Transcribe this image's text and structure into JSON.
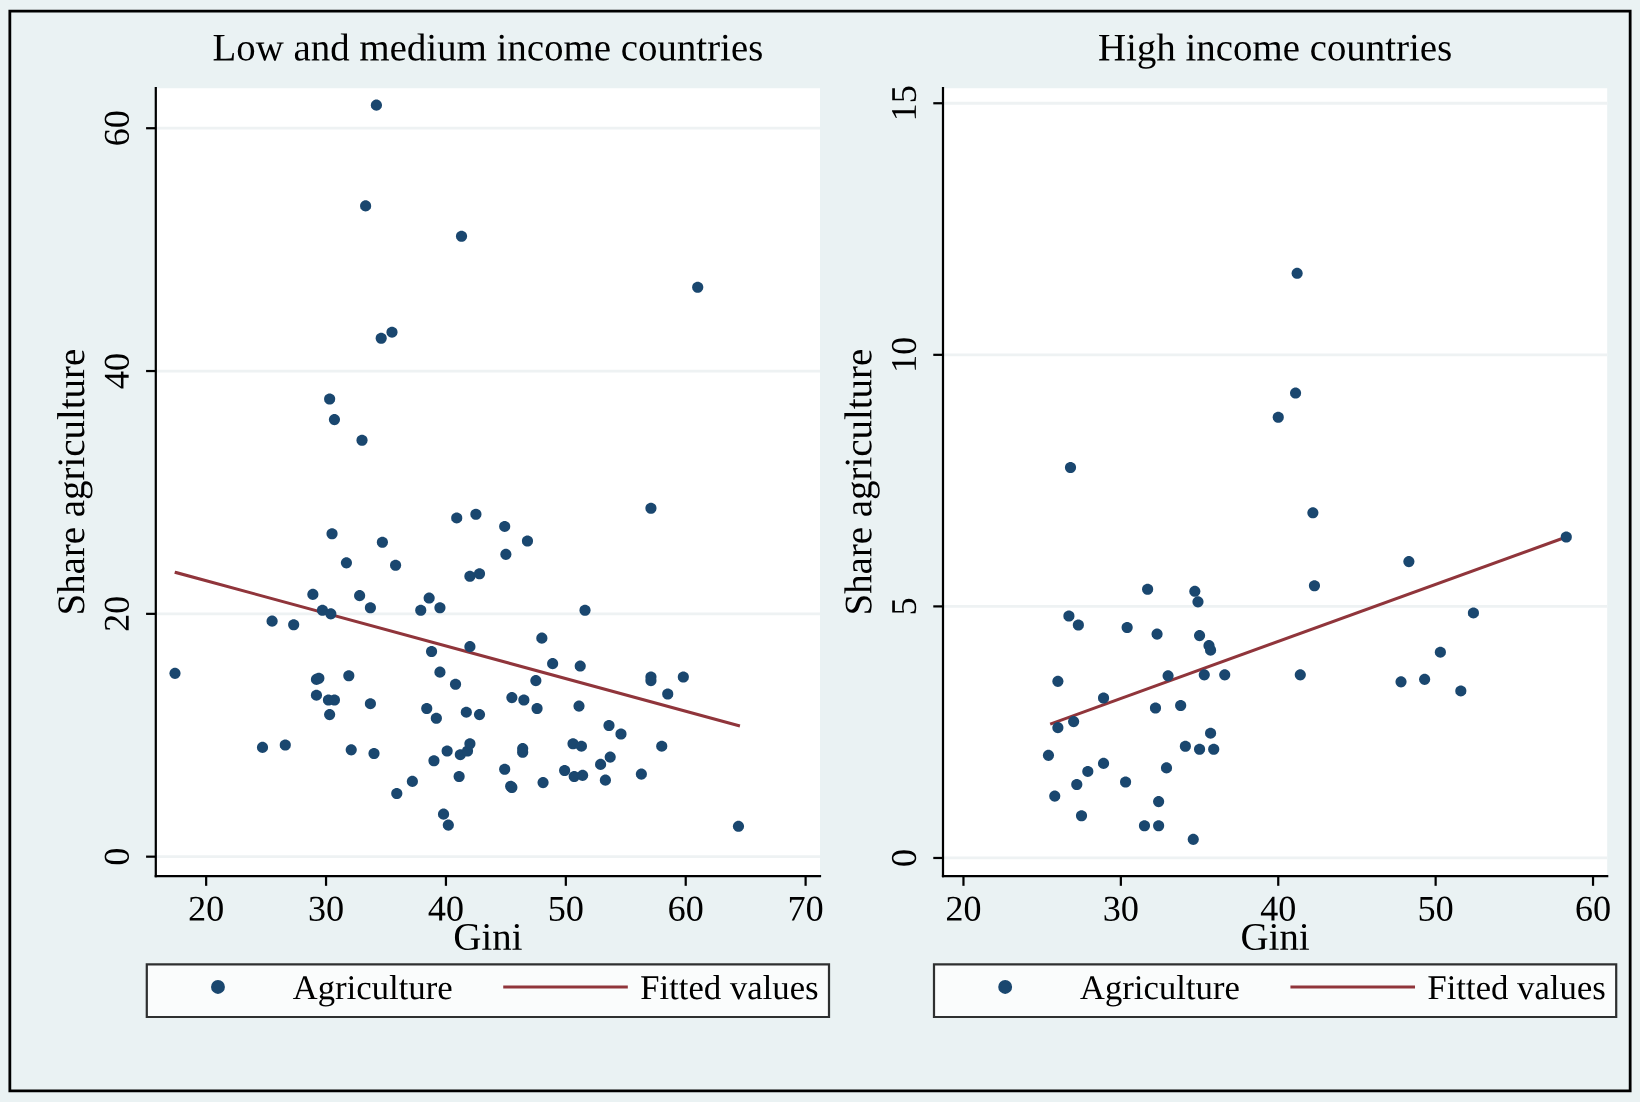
{
  "chart_data": [
    {
      "type": "scatter",
      "title": "Low and medium income countries",
      "xlabel": "Gini",
      "ylabel": "Share agriculture",
      "xlim": [
        15.8,
        71.2
      ],
      "ylim": [
        -1.6,
        63.3
      ],
      "xticks": [
        20,
        30,
        40,
        50,
        60,
        70
      ],
      "yticks": [
        0,
        20,
        40,
        60
      ],
      "grid": "y",
      "legend": "bottom",
      "series": [
        {
          "name": "Agriculture",
          "marker": "circle",
          "color": "#1a476f",
          "x": [
            17.4,
            24.7,
            25.5,
            26.6,
            27.3,
            28.9,
            29.2,
            29.4,
            29.2,
            29.7,
            30.4,
            30.2,
            30.7,
            30.3,
            30.3,
            30.7,
            30.5,
            31.7,
            31.9,
            32.1,
            32.8,
            33.0,
            33.3,
            33.7,
            33.7,
            34.0,
            34.2,
            34.6,
            35.5,
            34.7,
            35.8,
            35.9,
            37.2,
            37.9,
            38.4,
            38.6,
            38.8,
            39.2,
            39.5,
            39.5,
            39.0,
            39.8,
            40.2,
            40.1,
            40.8,
            40.9,
            41.3,
            41.1,
            41.2,
            41.7,
            41.8,
            42.0,
            42.0,
            42.0,
            42.5,
            42.8,
            42.8,
            44.9,
            45.0,
            44.9,
            45.4,
            45.5,
            45.5,
            46.4,
            46.4,
            46.5,
            46.8,
            47.5,
            47.6,
            48.0,
            48.1,
            48.9,
            49.9,
            50.6,
            50.7,
            51.3,
            51.4,
            51.1,
            51.2,
            51.6,
            52.9,
            53.3,
            53.6,
            53.7,
            54.6,
            56.3,
            57.1,
            57.1,
            57.1,
            58.0,
            58.5,
            59.8,
            61.0,
            64.4
          ],
          "values": [
            15.1,
            9.0,
            19.4,
            9.2,
            19.1,
            21.6,
            14.6,
            14.7,
            13.3,
            20.3,
            20.0,
            12.9,
            12.9,
            11.7,
            37.7,
            36.0,
            26.6,
            24.2,
            14.9,
            8.8,
            21.5,
            34.3,
            53.6,
            20.5,
            12.6,
            8.5,
            61.9,
            42.7,
            43.2,
            25.9,
            24.0,
            5.2,
            6.2,
            20.3,
            12.2,
            21.3,
            16.9,
            11.4,
            15.2,
            20.5,
            7.9,
            3.5,
            2.6,
            8.7,
            14.2,
            27.9,
            51.1,
            6.6,
            8.4,
            11.9,
            8.7,
            9.3,
            17.3,
            23.1,
            28.2,
            23.3,
            11.7,
            27.2,
            24.9,
            7.2,
            5.8,
            5.7,
            13.1,
            8.9,
            8.6,
            12.9,
            26.0,
            14.5,
            12.2,
            18.0,
            6.1,
            15.9,
            7.1,
            9.3,
            6.6,
            9.1,
            6.7,
            12.4,
            15.7,
            20.3,
            7.6,
            6.3,
            10.8,
            8.2,
            10.1,
            6.8,
            28.7,
            14.8,
            14.5,
            9.1,
            13.4,
            14.8,
            46.9,
            2.5
          ]
        },
        {
          "name": "Fitted values",
          "type": "line",
          "color": "#90353b",
          "x": [
            17.5,
            64.4
          ],
          "values": [
            23.4,
            10.8
          ]
        }
      ]
    },
    {
      "type": "scatter",
      "title": "High income countries",
      "xlabel": "Gini",
      "ylabel": "Share agriculture",
      "xlim": [
        18.7,
        60.9
      ],
      "ylim": [
        -0.36,
        15.3
      ],
      "xticks": [
        20,
        30,
        40,
        50,
        60
      ],
      "yticks": [
        0,
        5,
        10,
        15
      ],
      "grid": "y",
      "legend": "bottom",
      "series": [
        {
          "name": "Agriculture",
          "marker": "circle",
          "color": "#1a476f",
          "x": [
            25.4,
            25.8,
            26.0,
            26.0,
            26.7,
            26.8,
            27.0,
            27.2,
            27.3,
            27.5,
            27.9,
            28.9,
            28.9,
            30.3,
            30.4,
            31.5,
            31.7,
            32.2,
            32.3,
            32.4,
            32.4,
            32.9,
            33.0,
            33.8,
            34.1,
            34.6,
            34.7,
            34.9,
            35.0,
            35.0,
            35.3,
            35.6,
            35.7,
            35.7,
            35.9,
            36.6,
            40.0,
            41.1,
            41.2,
            41.4,
            42.2,
            42.3,
            47.8,
            48.3,
            49.3,
            50.3,
            51.6,
            52.4,
            58.3
          ],
          "values": [
            2.04,
            1.23,
            3.51,
            2.59,
            4.81,
            7.76,
            2.71,
            1.46,
            4.63,
            0.84,
            1.72,
            3.18,
            1.88,
            1.51,
            4.58,
            0.64,
            5.34,
            2.98,
            4.45,
            1.12,
            0.64,
            1.79,
            3.62,
            3.03,
            2.22,
            0.37,
            5.3,
            5.09,
            4.42,
            2.16,
            3.64,
            4.22,
            4.13,
            2.48,
            2.16,
            3.64,
            8.76,
            9.24,
            11.62,
            3.64,
            6.86,
            5.41,
            3.5,
            5.89,
            3.55,
            4.09,
            3.32,
            4.87,
            6.38
          ]
        },
        {
          "name": "Fitted values",
          "type": "line",
          "color": "#90353b",
          "x": [
            25.6,
            58.3
          ],
          "values": [
            2.67,
            6.38
          ]
        }
      ]
    }
  ]
}
